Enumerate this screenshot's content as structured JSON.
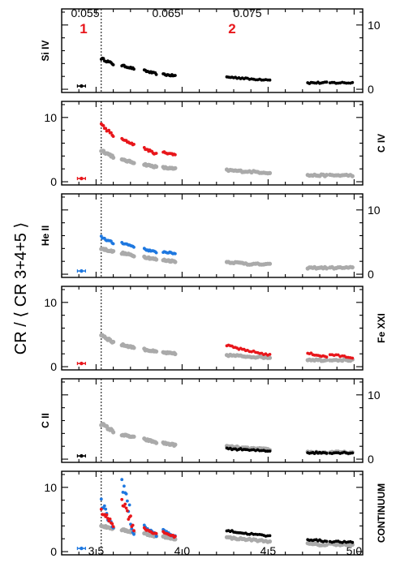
{
  "chart_data": {
    "type": "scatter",
    "ylabel": "CR / ⟨ CR 3+4+5 ⟩",
    "x_bottom": {
      "lim": [
        3.3,
        5.05
      ],
      "ticks": [
        "3.5",
        "4.0",
        "4.5",
        "5.0"
      ]
    },
    "x_top": {
      "ticks": [
        "0.055",
        "0.065",
        "0.075"
      ]
    },
    "ylim": [
      -0.5,
      12.5
    ],
    "yticks": [
      "0",
      "10"
    ],
    "marker_line_x": 3.53,
    "annotations": [
      "1",
      "2"
    ],
    "colors": {
      "grey": "#aaaaaa",
      "red": "#e8161b",
      "blue": "#1e78e0",
      "black": "#000000"
    },
    "panels": [
      {
        "label": "Si IV",
        "label_side": "left",
        "yticks_side": "right",
        "series": [
          {
            "color": "black",
            "segments": [
              [
                3.38,
                3.45,
                0.5,
                0.5
              ],
              [
                3.53,
                3.6,
                4.8,
                3.9
              ],
              [
                3.65,
                3.72,
                3.7,
                3.2
              ],
              [
                3.78,
                3.85,
                2.9,
                2.4
              ],
              [
                3.89,
                3.96,
                2.3,
                2.1
              ],
              [
                4.26,
                4.37,
                1.9,
                1.7
              ],
              [
                4.38,
                4.51,
                1.6,
                1.5
              ],
              [
                4.73,
                4.84,
                1.0,
                1.0
              ],
              [
                4.86,
                4.99,
                1.0,
                1.0
              ]
            ]
          }
        ]
      },
      {
        "label": "C IV",
        "label_side": "right",
        "yticks_side": "left",
        "series": [
          {
            "color": "grey",
            "segments": [
              [
                3.53,
                3.6,
                4.9,
                3.9
              ],
              [
                3.65,
                3.72,
                3.4,
                3.0
              ],
              [
                3.78,
                3.85,
                2.7,
                2.3
              ],
              [
                3.89,
                3.96,
                2.2,
                2.0
              ],
              [
                4.26,
                4.37,
                1.8,
                1.6
              ],
              [
                4.38,
                4.51,
                1.6,
                1.4
              ],
              [
                4.73,
                4.84,
                1.0,
                1.0
              ],
              [
                4.86,
                4.99,
                1.0,
                1.0
              ]
            ]
          },
          {
            "color": "red",
            "segments": [
              [
                3.38,
                3.45,
                0.5,
                0.5
              ],
              [
                3.53,
                3.6,
                8.8,
                7.2
              ],
              [
                3.65,
                3.72,
                6.6,
                5.8
              ],
              [
                3.78,
                3.85,
                5.2,
                4.3
              ],
              [
                3.89,
                3.96,
                4.6,
                4.2
              ]
            ]
          }
        ]
      },
      {
        "label": "He II",
        "label_side": "left",
        "yticks_side": "right",
        "series": [
          {
            "color": "grey",
            "segments": [
              [
                3.53,
                3.6,
                4.0,
                3.5
              ],
              [
                3.65,
                3.72,
                3.3,
                2.9
              ],
              [
                3.78,
                3.85,
                2.7,
                2.3
              ],
              [
                3.89,
                3.96,
                2.2,
                2.0
              ],
              [
                4.26,
                4.37,
                1.9,
                1.7
              ],
              [
                4.38,
                4.51,
                1.6,
                1.5
              ],
              [
                4.73,
                4.84,
                1.0,
                1.0
              ],
              [
                4.86,
                4.99,
                1.0,
                1.0
              ]
            ]
          },
          {
            "color": "blue",
            "segments": [
              [
                3.38,
                3.45,
                0.5,
                0.5
              ],
              [
                3.53,
                3.6,
                5.8,
                4.8
              ],
              [
                3.65,
                3.72,
                4.9,
                4.3
              ],
              [
                3.78,
                3.85,
                3.9,
                3.4
              ],
              [
                3.89,
                3.96,
                3.5,
                3.2
              ]
            ]
          }
        ]
      },
      {
        "label": "Fe XXI",
        "label_side": "right",
        "yticks_side": "left",
        "series": [
          {
            "color": "grey",
            "segments": [
              [
                3.53,
                3.6,
                5.0,
                3.8
              ],
              [
                3.65,
                3.72,
                3.4,
                3.0
              ],
              [
                3.78,
                3.85,
                2.7,
                2.3
              ],
              [
                3.89,
                3.96,
                2.2,
                2.0
              ],
              [
                4.26,
                4.37,
                1.8,
                1.6
              ],
              [
                4.38,
                4.51,
                1.6,
                1.4
              ],
              [
                4.73,
                4.84,
                1.1,
                1.0
              ],
              [
                4.86,
                4.99,
                1.1,
                1.0
              ]
            ]
          },
          {
            "color": "red",
            "segments": [
              [
                3.38,
                3.45,
                0.5,
                0.5
              ],
              [
                4.26,
                4.37,
                3.3,
                2.5
              ],
              [
                4.38,
                4.51,
                2.5,
                1.8
              ],
              [
                4.73,
                4.84,
                2.1,
                1.5
              ],
              [
                4.86,
                4.99,
                1.9,
                1.4
              ]
            ]
          }
        ]
      },
      {
        "label": "C II",
        "label_side": "left",
        "yticks_side": "right",
        "series": [
          {
            "color": "grey",
            "segments": [
              [
                3.53,
                3.6,
                5.5,
                4.3
              ],
              [
                3.65,
                3.72,
                3.8,
                3.4
              ],
              [
                3.78,
                3.85,
                3.1,
                2.6
              ],
              [
                3.89,
                3.96,
                2.5,
                2.2
              ],
              [
                4.26,
                4.37,
                2.0,
                1.7
              ],
              [
                4.38,
                4.51,
                1.7,
                1.5
              ],
              [
                4.73,
                4.84,
                1.1,
                1.0
              ],
              [
                4.86,
                4.99,
                1.1,
                1.0
              ]
            ]
          },
          {
            "color": "black",
            "segments": [
              [
                3.38,
                3.45,
                0.5,
                0.5
              ],
              [
                4.26,
                4.37,
                1.6,
                1.5
              ],
              [
                4.38,
                4.51,
                1.4,
                1.3
              ],
              [
                4.73,
                4.84,
                1.0,
                1.0
              ],
              [
                4.86,
                4.99,
                1.0,
                1.0
              ]
            ]
          }
        ]
      },
      {
        "label": "CONTINUUM",
        "label_side": "right",
        "yticks_side": "left",
        "series": [
          {
            "color": "grey",
            "segments": [
              [
                3.53,
                3.6,
                4.0,
                3.6
              ],
              [
                3.65,
                3.72,
                3.4,
                3.0
              ],
              [
                3.78,
                3.85,
                2.8,
                2.4
              ],
              [
                3.89,
                3.96,
                2.3,
                2.0
              ],
              [
                4.26,
                4.37,
                2.2,
                1.9
              ],
              [
                4.38,
                4.51,
                1.9,
                1.6
              ],
              [
                4.73,
                4.84,
                1.2,
                1.0
              ],
              [
                4.86,
                4.99,
                1.2,
                1.0
              ]
            ]
          },
          {
            "color": "blue",
            "segments": [
              [
                3.38,
                3.45,
                0.5,
                0.5
              ],
              [
                3.53,
                3.6,
                7.6,
                3.5
              ],
              [
                3.65,
                3.72,
                11.5,
                2.8
              ],
              [
                3.78,
                3.85,
                3.9,
                2.6
              ],
              [
                3.89,
                3.96,
                3.3,
                2.3
              ]
            ]
          },
          {
            "color": "red",
            "segments": [
              [
                3.53,
                3.6,
                6.3,
                4.2
              ],
              [
                3.65,
                3.72,
                8.2,
                3.8
              ],
              [
                3.78,
                3.85,
                3.6,
                2.7
              ],
              [
                3.89,
                3.96,
                3.0,
                2.3
              ]
            ]
          },
          {
            "color": "black",
            "segments": [
              [
                4.26,
                4.37,
                3.3,
                2.8
              ],
              [
                4.38,
                4.51,
                2.8,
                2.4
              ],
              [
                4.73,
                4.84,
                1.9,
                1.6
              ],
              [
                4.86,
                4.99,
                1.6,
                1.4
              ]
            ]
          }
        ]
      }
    ]
  }
}
